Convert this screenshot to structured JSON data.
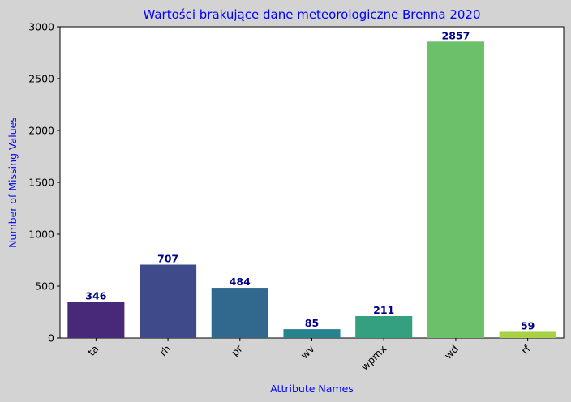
{
  "chart_data": {
    "type": "bar",
    "title": "Wartości brakujące dane meteorologiczne Brenna 2020",
    "xlabel": "Attribute Names",
    "ylabel": "Number of Missing Values",
    "categories": [
      "ta",
      "rh",
      "pr",
      "wv",
      "wpmx",
      "wd",
      "rf"
    ],
    "values": [
      346,
      707,
      484,
      85,
      211,
      2857,
      59
    ],
    "ylim": [
      0,
      3000
    ],
    "yticks": [
      0,
      500,
      1000,
      1500,
      2000,
      2500,
      3000
    ],
    "grid": false,
    "legend": "none",
    "colors": [
      "#482878",
      "#3e4a89",
      "#31688e",
      "#26828e",
      "#35a07f",
      "#6cc06a",
      "#a9d146"
    ],
    "title_color": "#0000ff",
    "axis_label_color": "#0000ff",
    "data_label_color": "#00008b",
    "background": "#d3d3d3",
    "plot_background": "#ffffff"
  }
}
